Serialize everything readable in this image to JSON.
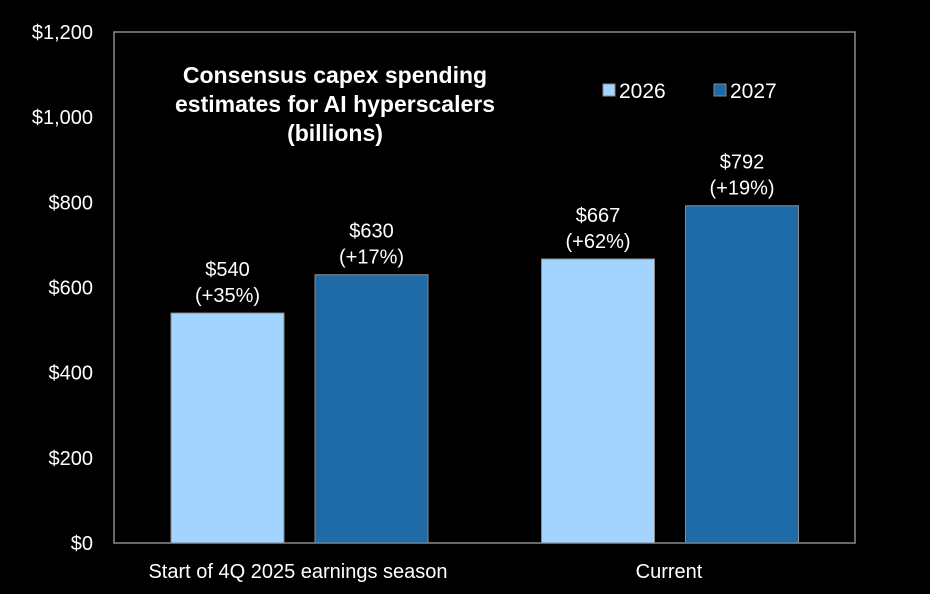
{
  "chart_data": {
    "type": "bar",
    "title": [
      "Consensus capex spending",
      "estimates for AI hyperscalers",
      "(billions)"
    ],
    "xlabel": "",
    "ylabel": "",
    "ylim": [
      0,
      1200
    ],
    "yticks": [
      0,
      200,
      400,
      600,
      800,
      1000,
      1200
    ],
    "ytick_labels": [
      "$0",
      "$200",
      "$400",
      "$600",
      "$800",
      "$1,000",
      "$1,200"
    ],
    "grid": false,
    "legend_position": "top-right",
    "categories": [
      "Start of 4Q 2025 earnings season",
      "Current"
    ],
    "series": [
      {
        "name": "2026",
        "color": "#A3D4FF",
        "values": [
          540,
          667
        ],
        "labels": [
          [
            "$540",
            "(+35%)"
          ],
          [
            "$667",
            "(+62%)"
          ]
        ]
      },
      {
        "name": "2027",
        "color": "#1F6BA8",
        "values": [
          630,
          792
        ],
        "labels": [
          [
            "$630",
            "(+17%)"
          ],
          [
            "$792",
            "(+19%)"
          ]
        ]
      }
    ]
  }
}
